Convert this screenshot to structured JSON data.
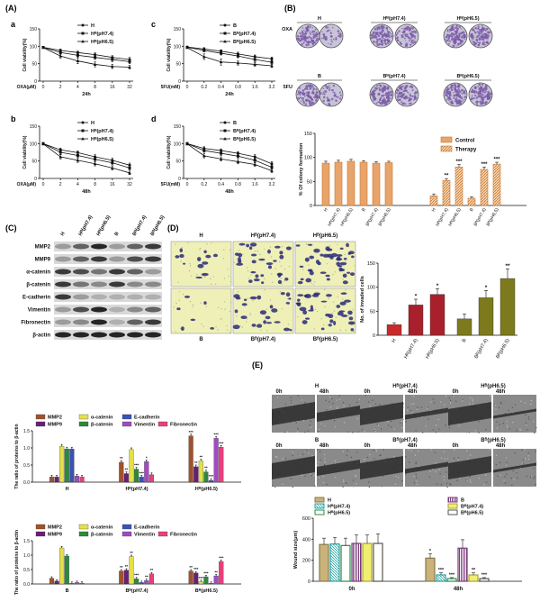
{
  "panel_labels": {
    "A": "(A)",
    "B": "(B)",
    "C": "(C)",
    "D": "(D)",
    "E": "(E)",
    "a": "a",
    "b": "b",
    "c": "c",
    "d": "d"
  },
  "colors": {
    "line": "#111111",
    "orange": "#e8a46a",
    "orange_dark": "#c9762f",
    "red": "#a8202c",
    "olive": "#7c7a1c",
    "plate_purple": "#7a5aa8",
    "mmp2": "#a0522d",
    "mmp9": "#6a1e78",
    "a_catenin": "#e5e04a",
    "b_catenin": "#2a8a3a",
    "e_cadherin": "#3a52b8",
    "vimentin": "#a04cc0",
    "fibronectin": "#e8407c",
    "wound_H": "#c9b37a",
    "wound_H74": "#2aa6a6",
    "wound_H65": "#2c8a4a",
    "wound_B": "#7a3a7a",
    "wound_B74": "#f2ee70",
    "wound_B65": "#555555"
  },
  "plate_labels": {
    "top_names": [
      "H",
      "Hᴮ(pH7.4)",
      "Hᴮ(pH6.5)"
    ],
    "bottom_names": [
      "B",
      "Bᴮ(pH7.4)",
      "Bᴮ(pH6.5)"
    ],
    "oxa": "OXA",
    "fu": "5FU",
    "minus": "-",
    "plus": "+"
  },
  "blot": {
    "lanes": [
      "H",
      "Hᴮ(pH7.4)",
      "Hᴮ(pH6.5)",
      "B",
      "Bᴮ(pH7.4)",
      "Bᴮ(pH6.5)"
    ],
    "bands": [
      "MMP2",
      "MMP9",
      "α-catenin",
      "β-catenin",
      "E-cadherin",
      "Vimentin",
      "Fibronectin",
      "β-actin"
    ]
  },
  "invasion_images": {
    "top": [
      "H",
      "Hᴮ(pH7.4)",
      "Hᴮ(pH6.5)"
    ],
    "bottom": [
      "B",
      "Bᴮ(pH7.4)",
      "Bᴮ(pH6.5)"
    ]
  },
  "wound_images": {
    "top": [
      "H",
      "Hᴮ(pH7.4)",
      "Hᴮ(pH6.5)"
    ],
    "bottom": [
      "B",
      "Bᴮ(pH7.4)",
      "Bᴮ(pH6.5)"
    ],
    "t0": "0h",
    "t48": "48h"
  },
  "chart_data": [
    {
      "id": "Aa",
      "type": "line",
      "panel": "a",
      "x": [
        0,
        2,
        4,
        8,
        16,
        32
      ],
      "xlabel_prefix": "OXA(μM)",
      "xlabel": "24h",
      "ylabel": "Cell viability(%)",
      "ylim": [
        0,
        150
      ],
      "yticks": [
        0,
        50,
        100,
        150
      ],
      "series": [
        {
          "name": "H",
          "marker": "dot",
          "values": [
            97,
            88,
            82,
            76,
            68,
            62
          ],
          "err": [
            2,
            4,
            4,
            5,
            5,
            6
          ]
        },
        {
          "name": "Hᴮ(pH7.4)",
          "marker": "square",
          "values": [
            97,
            82,
            74,
            68,
            62,
            56
          ],
          "err": [
            2,
            5,
            6,
            6,
            6,
            6
          ]
        },
        {
          "name": "Hᴮ(pH6.5)",
          "marker": "tri",
          "values": [
            96,
            72,
            58,
            48,
            42,
            40
          ],
          "err": [
            2,
            6,
            8,
            7,
            6,
            5
          ]
        }
      ]
    },
    {
      "id": "Ab",
      "type": "line",
      "panel": "b",
      "x": [
        0,
        2,
        4,
        8,
        16,
        32
      ],
      "xlabel_prefix": "OXA(μM)",
      "xlabel": "48h",
      "ylabel": "Cell viability(%)",
      "ylim": [
        0,
        150
      ],
      "yticks": [
        0,
        50,
        100,
        150
      ],
      "series": [
        {
          "name": "H",
          "marker": "dot",
          "values": [
            100,
            82,
            74,
            62,
            52,
            38
          ],
          "err": [
            3,
            5,
            5,
            6,
            6,
            6
          ]
        },
        {
          "name": "Hᴮ(pH7.4)",
          "marker": "square",
          "values": [
            100,
            75,
            66,
            55,
            45,
            30
          ],
          "err": [
            3,
            6,
            6,
            6,
            6,
            6
          ]
        },
        {
          "name": "Hᴮ(pH6.5)",
          "marker": "tri",
          "values": [
            99,
            62,
            52,
            42,
            30,
            16
          ],
          "err": [
            3,
            6,
            6,
            6,
            6,
            5
          ]
        }
      ]
    },
    {
      "id": "Ac",
      "type": "line",
      "panel": "c",
      "x": [
        0,
        0.2,
        0.4,
        0.8,
        1.6,
        3.2
      ],
      "xlabel_prefix": "5FU(mM)",
      "xlabel": "24h",
      "ylabel": "Cell viability(%)",
      "ylim": [
        0,
        150
      ],
      "yticks": [
        0,
        50,
        100,
        150
      ],
      "series": [
        {
          "name": "B",
          "marker": "dot",
          "values": [
            98,
            92,
            86,
            78,
            70,
            64
          ],
          "err": [
            2,
            4,
            4,
            5,
            5,
            5
          ]
        },
        {
          "name": "Bᴮ(pH7.4)",
          "marker": "square",
          "values": [
            97,
            88,
            80,
            72,
            62,
            54
          ],
          "err": [
            2,
            4,
            5,
            5,
            6,
            6
          ]
        },
        {
          "name": "Bᴮ(pH6.5)",
          "marker": "tri",
          "values": [
            96,
            70,
            55,
            52,
            48,
            44
          ],
          "err": [
            2,
            8,
            9,
            6,
            5,
            5
          ]
        }
      ]
    },
    {
      "id": "Ad",
      "type": "line",
      "panel": "d",
      "x": [
        0,
        0.2,
        0.4,
        0.8,
        1.6,
        3.2
      ],
      "xlabel_prefix": "5FU(mM)",
      "xlabel": "48h",
      "ylabel": "Cell viability(%)",
      "ylim": [
        0,
        150
      ],
      "yticks": [
        0,
        50,
        100,
        150
      ],
      "series": [
        {
          "name": "B",
          "marker": "dot",
          "values": [
            100,
            86,
            80,
            72,
            62,
            42
          ],
          "err": [
            3,
            5,
            5,
            5,
            6,
            6
          ]
        },
        {
          "name": "Bᴮ(pH7.4)",
          "marker": "square",
          "values": [
            100,
            80,
            72,
            64,
            52,
            32
          ],
          "err": [
            3,
            5,
            6,
            6,
            6,
            6
          ]
        },
        {
          "name": "Bᴮ(pH6.5)",
          "marker": "tri",
          "values": [
            99,
            65,
            56,
            48,
            40,
            22
          ],
          "err": [
            3,
            6,
            6,
            6,
            5,
            5
          ]
        }
      ]
    },
    {
      "id": "B",
      "type": "bar",
      "title": "",
      "ylabel": "% Of colony formation",
      "ylim": [
        0,
        150
      ],
      "yticks": [
        0,
        50,
        100,
        150
      ],
      "categories": [
        "H",
        "Hᴮ(pH7.4)",
        "Hᴮ(pH6.5)",
        "B",
        "Bᴮ(pH7.4)",
        "Bᴮ(pH6.5)"
      ],
      "series": [
        {
          "name": "Control",
          "values": [
            88,
            90,
            92,
            90,
            88,
            89
          ],
          "err": [
            4,
            4,
            4,
            3,
            3,
            3
          ],
          "sig": [
            "",
            "",
            "",
            "",
            "",
            ""
          ]
        },
        {
          "name": "Therapy",
          "values": [
            20,
            52,
            80,
            15,
            75,
            86
          ],
          "err": [
            4,
            4,
            5,
            3,
            5,
            4
          ],
          "sig": [
            "",
            "**",
            "***",
            "",
            "***",
            "***"
          ]
        }
      ]
    },
    {
      "id": "D",
      "type": "bar",
      "ylabel": "No. of invaded cells",
      "ylim": [
        0,
        150
      ],
      "yticks": [
        0,
        50,
        100,
        150
      ],
      "categories": [
        "H",
        "Hᴮ(pH7.4)",
        "Hᴮ(pH6.5)",
        "B",
        "Bᴮ(pH7.4)",
        "Bᴮ(pH6.5)"
      ],
      "values": [
        22,
        63,
        85,
        34,
        78,
        118
      ],
      "err": [
        4,
        12,
        12,
        10,
        15,
        20
      ],
      "sig": [
        "",
        "*",
        "*",
        "",
        "*",
        "**"
      ]
    },
    {
      "id": "C_top",
      "type": "bar",
      "ylabel": "The ratio of proteins to β-actin",
      "ylim": [
        0,
        1.5
      ],
      "yticks": [
        0.0,
        0.5,
        1.0,
        1.5
      ],
      "categories": [
        "H",
        "Hᴮ(pH7.4)",
        "Hᴮ(pH6.5)"
      ],
      "series": [
        {
          "name": "MMP2",
          "values": [
            0.15,
            0.58,
            1.35
          ],
          "sig": [
            "",
            "**",
            "***"
          ]
        },
        {
          "name": "MMP9",
          "values": [
            0.15,
            0.25,
            0.45
          ],
          "sig": [
            "",
            "**",
            "**"
          ]
        },
        {
          "name": "α-catenin",
          "values": [
            1.05,
            0.95,
            0.62
          ],
          "sig": [
            "",
            "",
            "**"
          ]
        },
        {
          "name": "β-catenin",
          "values": [
            0.97,
            0.38,
            0.3
          ],
          "sig": [
            "",
            "***",
            "**"
          ]
        },
        {
          "name": "E-cadherin",
          "values": [
            0.97,
            0.15,
            0.05
          ],
          "sig": [
            "",
            "***",
            "***"
          ]
        },
        {
          "name": "Vimentin",
          "values": [
            0.18,
            0.6,
            1.28
          ],
          "sig": [
            "",
            "*",
            "***"
          ]
        },
        {
          "name": "Fibronectin",
          "values": [
            0.15,
            0.22,
            1.02
          ],
          "sig": [
            "",
            "",
            "***"
          ]
        }
      ]
    },
    {
      "id": "C_bottom",
      "type": "bar",
      "ylabel": "The ratio of proteins to β-actin",
      "ylim": [
        0,
        1.5
      ],
      "yticks": [
        0.0,
        0.5,
        1.0,
        1.5
      ],
      "categories": [
        "B",
        "Bᴮ(pH7.4)",
        "Bᴮ(pH6.5)"
      ],
      "series": [
        {
          "name": "MMP2",
          "values": [
            0.2,
            0.45,
            0.45
          ],
          "sig": [
            "",
            "**",
            "**"
          ]
        },
        {
          "name": "MMP9",
          "values": [
            0.1,
            0.48,
            0.38
          ],
          "sig": [
            "",
            "**",
            "***"
          ]
        },
        {
          "name": "α-catenin",
          "values": [
            1.25,
            0.95,
            0.08
          ],
          "sig": [
            "",
            "**",
            "***"
          ]
        },
        {
          "name": "β-catenin",
          "values": [
            0.97,
            0.18,
            0.25
          ],
          "sig": [
            "",
            "***",
            "***"
          ]
        },
        {
          "name": "E-cadherin",
          "values": [
            0.02,
            0.05,
            0.02
          ],
          "sig": [
            "",
            "",
            ""
          ]
        },
        {
          "name": "Vimentin",
          "values": [
            0.05,
            0.12,
            0.28
          ],
          "sig": [
            "",
            "**",
            "**"
          ]
        },
        {
          "name": "Fibronectin",
          "values": [
            0.03,
            0.35,
            0.78
          ],
          "sig": [
            "",
            "**",
            "***"
          ]
        }
      ]
    },
    {
      "id": "E",
      "type": "bar",
      "ylabel": "Wound size(μm)",
      "ylim": [
        0,
        600
      ],
      "yticks": [
        0,
        200,
        400,
        600
      ],
      "categories": [
        "0h",
        "48h"
      ],
      "series": [
        {
          "name": "H",
          "values": [
            350,
            220
          ],
          "err": [
            60,
            40
          ],
          "sig": [
            "",
            "*"
          ]
        },
        {
          "name": "Hᴮ(pH7.4)",
          "values": [
            355,
            60
          ],
          "err": [
            60,
            20
          ],
          "sig": [
            "",
            "***"
          ]
        },
        {
          "name": "Hᴮ(pH6.5)",
          "values": [
            340,
            25
          ],
          "err": [
            70,
            10
          ],
          "sig": [
            "",
            "***"
          ]
        },
        {
          "name": "B",
          "values": [
            360,
            315
          ],
          "err": [
            80,
            80
          ],
          "sig": [
            "",
            ""
          ]
        },
        {
          "name": "Bᴮ(pH7.4)",
          "values": [
            360,
            60
          ],
          "err": [
            80,
            20
          ],
          "sig": [
            "",
            "**"
          ]
        },
        {
          "name": "Bᴮ(pH6.5)",
          "values": [
            360,
            25
          ],
          "err": [
            90,
            10
          ],
          "sig": [
            "",
            "***"
          ]
        }
      ]
    }
  ]
}
